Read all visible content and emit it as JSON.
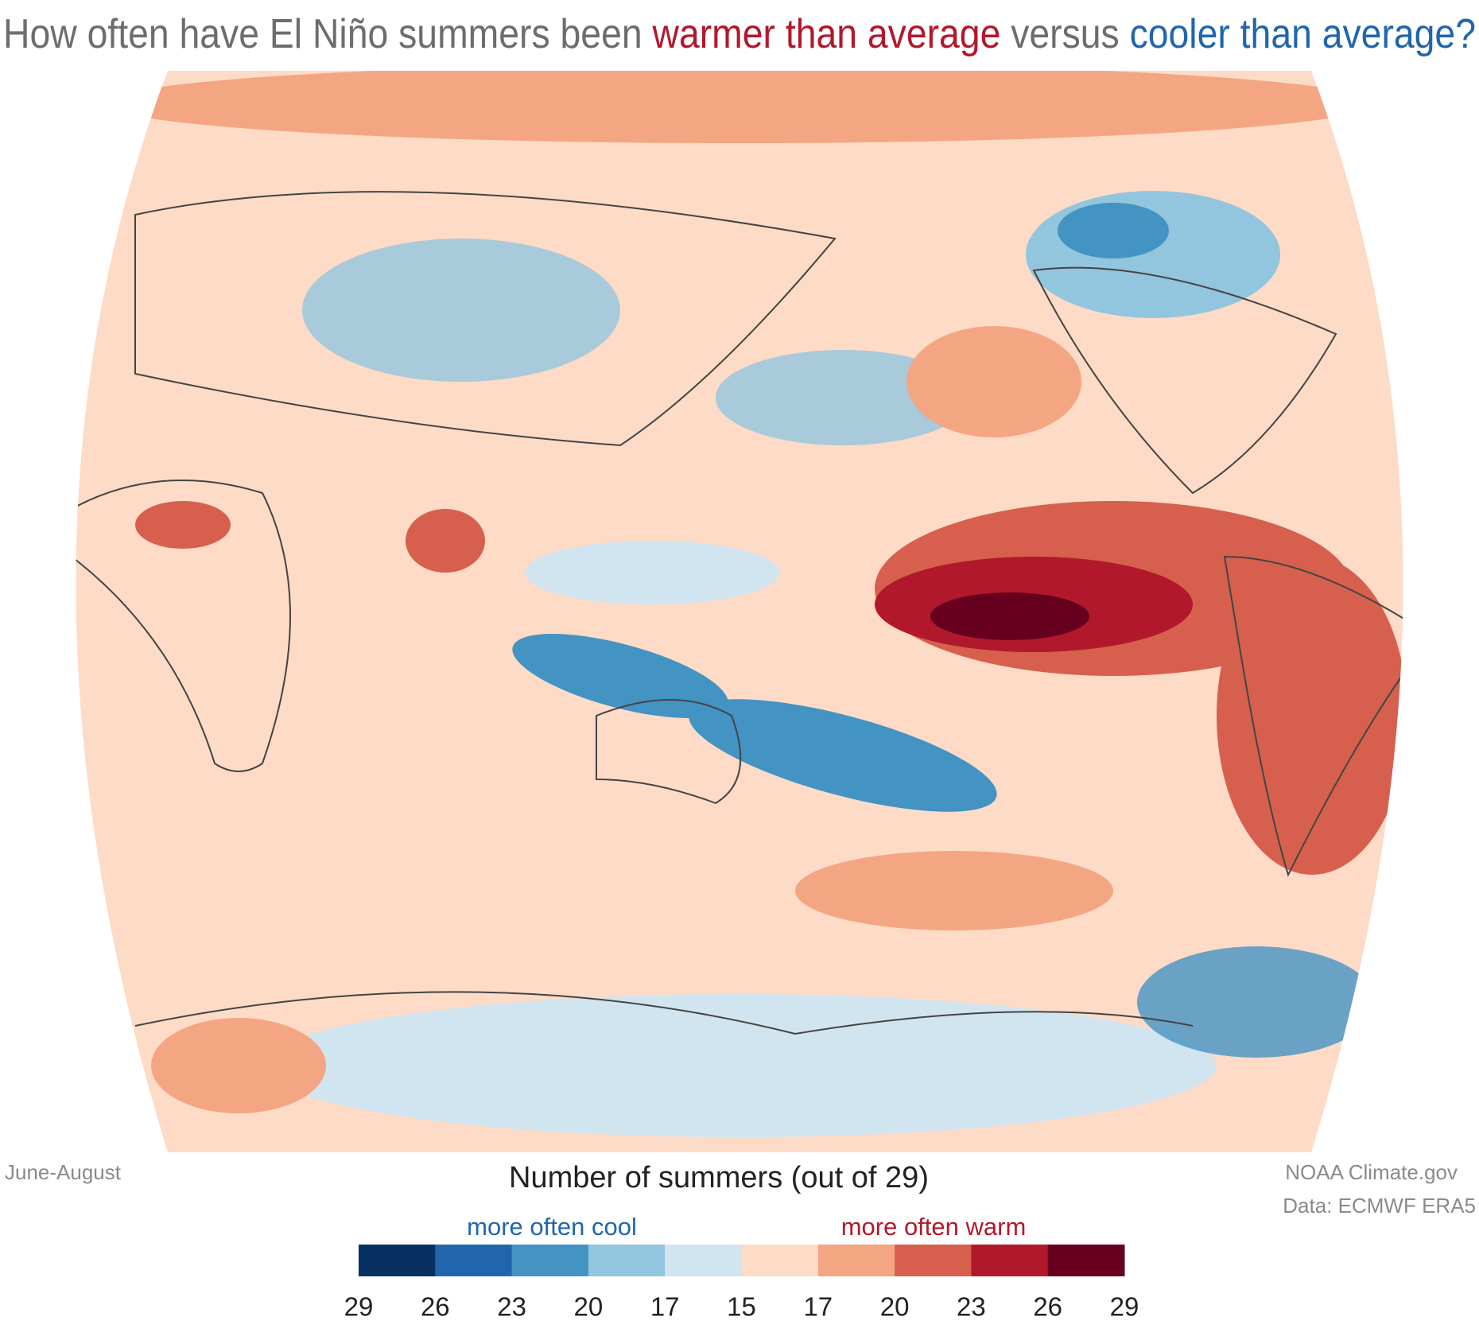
{
  "title": {
    "prefix": "How often have El Niño summers been",
    "warm": "warmer than average",
    "middle": "versus",
    "cool": "cooler than average?"
  },
  "season": "June-August",
  "credit": "NOAA Climate.gov",
  "source": "Data: ECMWF ERA5",
  "legend": {
    "title": "Number of summers (out of 29)",
    "cool_label": "more often cool",
    "warm_label": "more often warm",
    "colors": [
      "#053061",
      "#2166ac",
      "#4393c3",
      "#92c5de",
      "#d1e5f0",
      "#fddbc7",
      "#f4a582",
      "#d6604d",
      "#b2182b",
      "#67001f"
    ],
    "ticks": [
      29,
      26,
      23,
      20,
      17,
      15,
      17,
      20,
      23,
      26,
      29
    ]
  }
}
